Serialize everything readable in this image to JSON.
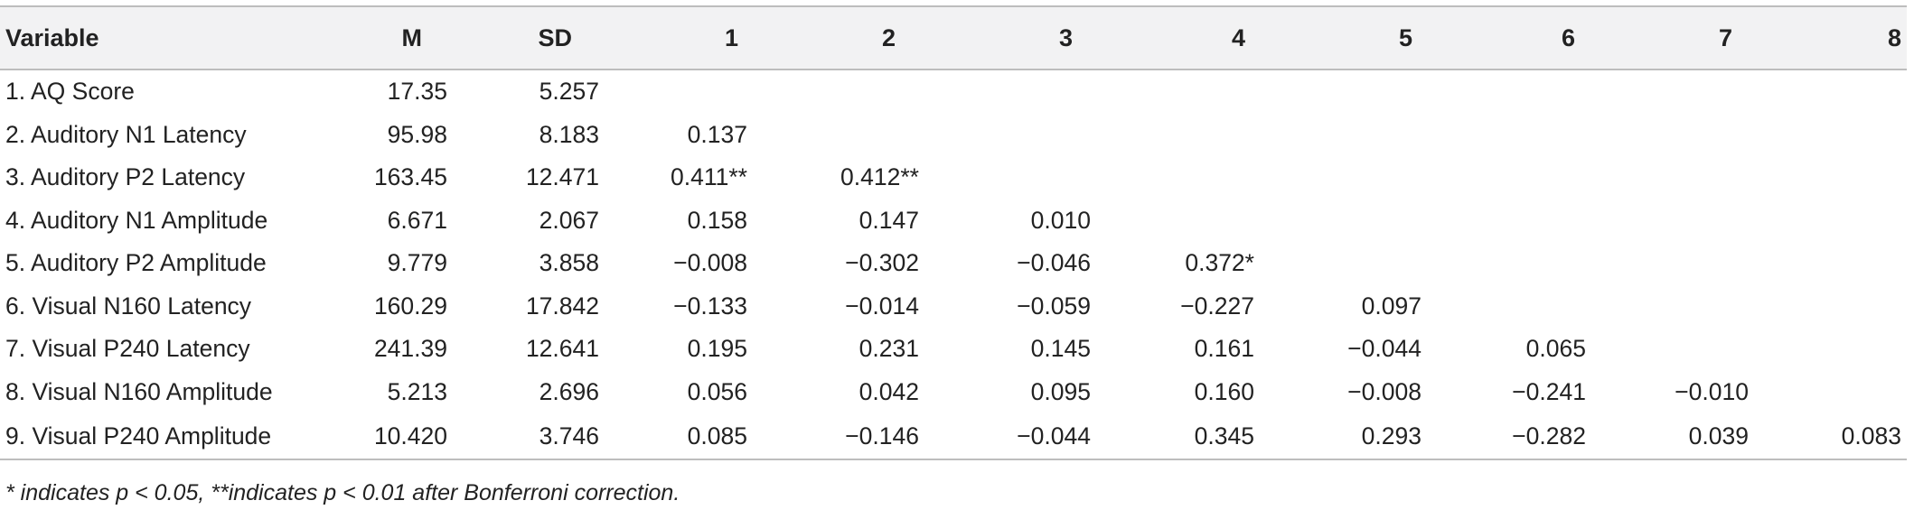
{
  "table": {
    "headers": [
      "Variable",
      "M",
      "SD",
      "1",
      "2",
      "3",
      "4",
      "5",
      "6",
      "7",
      "8"
    ],
    "rows": [
      [
        "1. AQ Score",
        "17.35",
        "5.257",
        "",
        "",
        "",
        "",
        "",
        "",
        "",
        ""
      ],
      [
        "2. Auditory N1 Latency",
        "95.98",
        "8.183",
        "0.137",
        "",
        "",
        "",
        "",
        "",
        "",
        ""
      ],
      [
        "3. Auditory P2 Latency",
        "163.45",
        "12.471",
        "0.411**",
        "0.412**",
        "",
        "",
        "",
        "",
        "",
        ""
      ],
      [
        "4. Auditory N1 Amplitude",
        "6.671",
        "2.067",
        "0.158",
        "0.147",
        "0.010",
        "",
        "",
        "",
        "",
        ""
      ],
      [
        "5. Auditory P2 Amplitude",
        "9.779",
        "3.858",
        "−0.008",
        "−0.302",
        "−0.046",
        "0.372*",
        "",
        "",
        "",
        ""
      ],
      [
        "6. Visual N160 Latency",
        "160.29",
        "17.842",
        "−0.133",
        "−0.014",
        "−0.059",
        "−0.227",
        "0.097",
        "",
        "",
        ""
      ],
      [
        "7. Visual P240 Latency",
        "241.39",
        "12.641",
        "0.195",
        "0.231",
        "0.145",
        "0.161",
        "−0.044",
        "0.065",
        "",
        ""
      ],
      [
        "8. Visual N160 Amplitude",
        "5.213",
        "2.696",
        "0.056",
        "0.042",
        "0.095",
        "0.160",
        "−0.008",
        "−0.241",
        "−0.010",
        ""
      ],
      [
        "9. Visual P240 Amplitude",
        "10.420",
        "3.746",
        "0.085",
        "−0.146",
        "−0.044",
        "0.345",
        "0.293",
        "−0.282",
        "0.039",
        "0.083"
      ]
    ]
  },
  "footnote": "* indicates p < 0.05, **indicates p < 0.01 after Bonferroni correction."
}
